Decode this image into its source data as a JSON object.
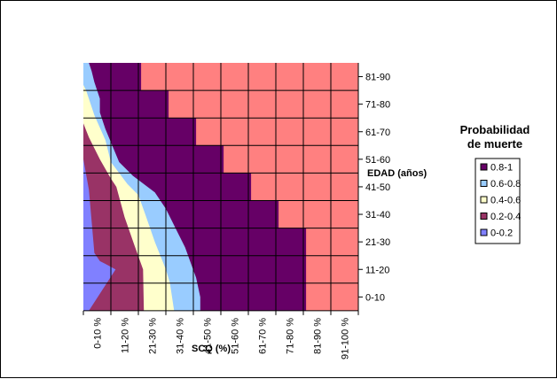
{
  "chart_data": {
    "type": "area",
    "subtype": "contour",
    "title": "",
    "xlabel": "SCQ (%)",
    "ylabel": "EDAD (años)",
    "x_categories": [
      "0-10 %",
      "11-20 %",
      "21-30 %",
      "31-40 %",
      "41-50 %",
      "51-60 %",
      "61-70 %",
      "71-80 %",
      "81-90 %",
      "91-100 %"
    ],
    "y_categories": [
      "0-10",
      "11-20",
      "21-30",
      "31-40",
      "41-50",
      "51-60",
      "61-70",
      "71-80",
      "81-90"
    ],
    "legend": {
      "title_line1": "Probabilidad",
      "title_line2": "de muerte",
      "placement": "right",
      "entries": [
        {
          "label": "0.8-1",
          "color": "#660066"
        },
        {
          "label": "0.6-0.8",
          "color": "#99ccff"
        },
        {
          "label": "0.4-0.6",
          "color": "#ffffcc"
        },
        {
          "label": "0.2-0.4",
          "color": "#993366"
        },
        {
          "label": "0-0.2",
          "color": "#8080ff"
        }
      ]
    },
    "above_max_color": "#ff8080",
    "bands": [
      {
        "range": "0-0.2",
        "upper_edge": [
          [
            0.2,
            0
          ],
          [
            1.17,
            1.5
          ],
          [
            0.8,
            1.7
          ],
          [
            0.6,
            1.8
          ],
          [
            0.4,
            2.1
          ],
          [
            0.2,
            4.4
          ],
          [
            0,
            5.5
          ]
        ]
      },
      {
        "range": "0.2-0.4",
        "upper_edge": [
          [
            2.2,
            0
          ],
          [
            2.17,
            1.5
          ],
          [
            1.85,
            2.4
          ],
          [
            1.5,
            3.4
          ],
          [
            1.2,
            4.5
          ],
          [
            1,
            4.8
          ],
          [
            0.6,
            5.5
          ],
          [
            0.2,
            6.3
          ],
          [
            0,
            6.8
          ]
        ]
      },
      {
        "range": "0.4-0.6",
        "upper_edge": [
          [
            3.3,
            0
          ],
          [
            3.15,
            1
          ],
          [
            3,
            1.5
          ],
          [
            2.8,
            2.0
          ],
          [
            2.6,
            2.5
          ],
          [
            2.25,
            3.5
          ],
          [
            2,
            4.2
          ],
          [
            1.6,
            4.6
          ],
          [
            1,
            5.4
          ],
          [
            0.8,
            6.2
          ],
          [
            0.4,
            7.1
          ],
          [
            0.1,
            8.0
          ],
          [
            0,
            8.2
          ]
        ]
      },
      {
        "range": "0.6-0.8",
        "upper_edge": [
          [
            4.25,
            0
          ],
          [
            4.25,
            0.5
          ],
          [
            4.1,
            1.2
          ],
          [
            3.7,
            2.3
          ],
          [
            3.4,
            2.9
          ],
          [
            3,
            3.7
          ],
          [
            2.6,
            4.3
          ],
          [
            1.8,
            4.9
          ],
          [
            1.3,
            5.4
          ],
          [
            0.8,
            6.6
          ],
          [
            0.6,
            7.2
          ],
          [
            0.6,
            7.7
          ],
          [
            0.4,
            8.3
          ],
          [
            0.3,
            8.7
          ],
          [
            0.2,
            9.0
          ]
        ]
      },
      {
        "range": "0.8-1",
        "upper_edge": [
          [
            8.1,
            0
          ],
          [
            8.1,
            3
          ],
          [
            7.1,
            3
          ],
          [
            7.1,
            4
          ],
          [
            6.1,
            4
          ],
          [
            6.1,
            5
          ],
          [
            5.1,
            5
          ],
          [
            5.1,
            6
          ],
          [
            4.1,
            6
          ],
          [
            4.1,
            7
          ],
          [
            3.1,
            7
          ],
          [
            3.1,
            8
          ],
          [
            2.1,
            8
          ],
          [
            2.1,
            9
          ]
        ]
      }
    ]
  }
}
